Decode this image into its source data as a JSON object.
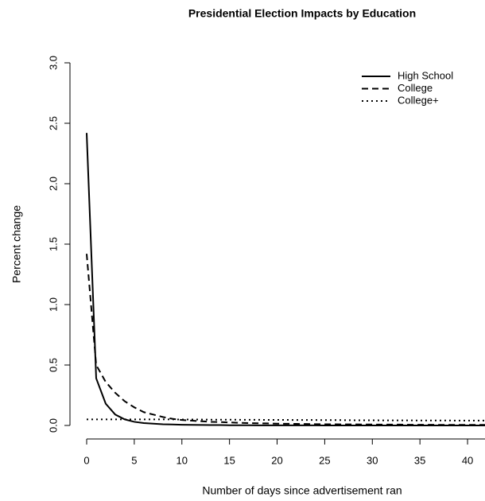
{
  "chart_data": {
    "type": "line",
    "title": "Presidential Election Impacts by Education",
    "x_label": "Number of days since advertisement ran",
    "y_label": "Percent change",
    "x": [
      0,
      1,
      2,
      3,
      4,
      5,
      6,
      7,
      8,
      9,
      10,
      11,
      12,
      13,
      14,
      15,
      16,
      17,
      18,
      19,
      20,
      21,
      22,
      23,
      24,
      25,
      26,
      27,
      28,
      29,
      30,
      31,
      32,
      33,
      34,
      35,
      36,
      37,
      38,
      39,
      40,
      41,
      42
    ],
    "series": [
      {
        "name": "High School",
        "color": "#000000",
        "linestyle": "solid",
        "values": [
          2.42,
          0.39,
          0.18,
          0.09,
          0.05,
          0.03,
          0.02,
          0.015,
          0.01,
          0.008,
          0.006,
          0.005,
          0.004,
          0.003,
          0.003,
          0.002,
          0.002,
          0.002,
          0.001,
          0.001,
          0.001,
          0.001,
          0.001,
          0.001,
          0.001,
          0,
          0,
          0,
          0,
          0,
          0,
          0,
          0,
          0,
          0,
          0,
          0,
          0,
          0,
          0,
          0,
          0,
          0
        ]
      },
      {
        "name": "College",
        "color": "#000000",
        "linestyle": "dashed",
        "values": [
          1.42,
          0.5,
          0.36,
          0.27,
          0.2,
          0.15,
          0.11,
          0.09,
          0.07,
          0.055,
          0.045,
          0.04,
          0.035,
          0.03,
          0.028,
          0.025,
          0.022,
          0.02,
          0.018,
          0.017,
          0.015,
          0.014,
          0.013,
          0.012,
          0.011,
          0.01,
          0.01,
          0.009,
          0.009,
          0.008,
          0.008,
          0.007,
          0.007,
          0.007,
          0.006,
          0.006,
          0.006,
          0.005,
          0.005,
          0.005,
          0.005,
          0.005,
          0.005
        ]
      },
      {
        "name": "College+",
        "color": "#000000",
        "linestyle": "dotted",
        "values": [
          0.05,
          0.05,
          0.05,
          0.05,
          0.05,
          0.05,
          0.05,
          0.05,
          0.05,
          0.05,
          0.049,
          0.049,
          0.049,
          0.048,
          0.048,
          0.048,
          0.047,
          0.047,
          0.047,
          0.046,
          0.046,
          0.046,
          0.045,
          0.045,
          0.045,
          0.044,
          0.044,
          0.044,
          0.043,
          0.043,
          0.043,
          0.042,
          0.042,
          0.042,
          0.042,
          0.041,
          0.041,
          0.041,
          0.041,
          0.04,
          0.04,
          0.04,
          0.04
        ]
      }
    ],
    "xlim": [
      0,
      42
    ],
    "ylim": [
      0,
      3
    ],
    "xticks": [
      0,
      5,
      10,
      15,
      20,
      25,
      30,
      35,
      40
    ],
    "yticks": [
      {
        "value": 0,
        "label": "0.0"
      },
      0.5,
      {
        "value": 1,
        "label": "1.0"
      },
      1.5,
      {
        "value": 2,
        "label": "2.0"
      },
      2.5,
      {
        "value": 3,
        "label": "3.0"
      }
    ],
    "legend": "topright",
    "grid": false
  }
}
